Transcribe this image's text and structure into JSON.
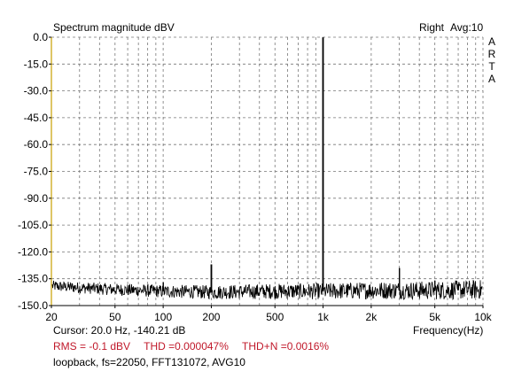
{
  "header": {
    "title": "Spectrum magnitude dBV",
    "channel": "Right",
    "average": "Avg:10",
    "brand_letters": [
      "A",
      "R",
      "T",
      "A"
    ]
  },
  "status": {
    "cursor": "Cursor:    20.0 Hz, -140.21 dB",
    "x_axis_label": "Frequency(Hz)",
    "rms": "RMS =   -0.1 dBV",
    "thd": "THD =0.000047%",
    "thdn": "THD+N =0.0016%",
    "info": "loopback, fs=22050, FFT131072, AVG10"
  },
  "colors": {
    "axis": "#c8a000",
    "measurement_text": "#c0182a",
    "trace": "#000000"
  },
  "chart_data": {
    "type": "line",
    "title": "Spectrum magnitude dBV",
    "xlabel": "Frequency(Hz)",
    "ylabel": "",
    "xscale": "log",
    "xlim": [
      20,
      10000
    ],
    "ylim": [
      -150,
      0
    ],
    "x_tick_labels": [
      "20",
      "50",
      "100",
      "200",
      "500",
      "1k",
      "2k",
      "5k",
      "10k"
    ],
    "x_tick_values": [
      20,
      50,
      100,
      200,
      500,
      1000,
      2000,
      5000,
      10000
    ],
    "y_tick_labels": [
      "0.0",
      "-15.0",
      "-30.0",
      "-45.0",
      "-60.0",
      "-75.0",
      "-90.0",
      "-105.0",
      "-120.0",
      "-135.0",
      "-150.0"
    ],
    "y_tick_values": [
      0,
      -15,
      -30,
      -45,
      -60,
      -75,
      -90,
      -105,
      -120,
      -135,
      -150
    ],
    "grid": true,
    "noise_floor": [
      [
        20,
        -139
      ],
      [
        30,
        -140
      ],
      [
        50,
        -141
      ],
      [
        100,
        -142
      ],
      [
        200,
        -142.5
      ],
      [
        500,
        -142
      ],
      [
        1000,
        -142
      ],
      [
        2000,
        -141.5
      ],
      [
        5000,
        -141.5
      ],
      [
        10000,
        -141
      ]
    ],
    "peaks": [
      {
        "x": 100,
        "y": -137
      },
      {
        "x": 200,
        "y": -127
      },
      {
        "x": 1000,
        "y": -0.1
      },
      {
        "x": 3000,
        "y": -129
      },
      {
        "x": 5000,
        "y": -136
      },
      {
        "x": 7000,
        "y": -138
      }
    ]
  }
}
